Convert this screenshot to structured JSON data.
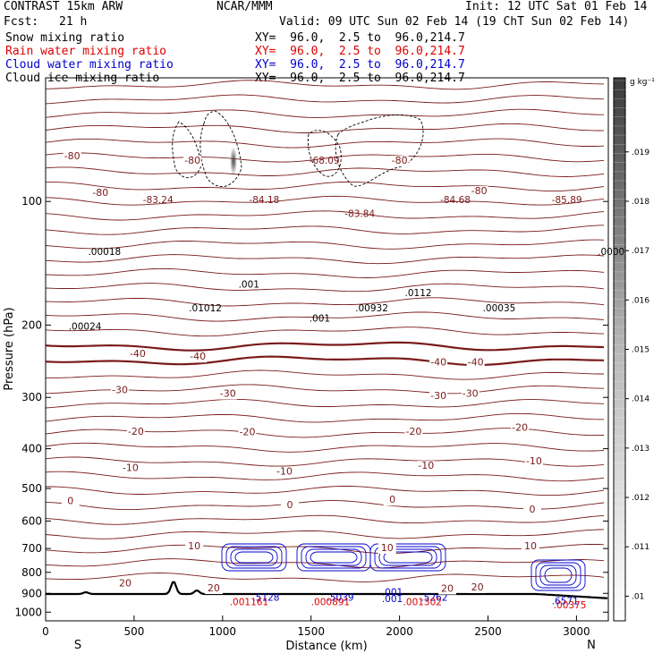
{
  "header": {
    "model": "CONTRAST 15km ARW",
    "org": "NCAR/MMM",
    "init": "Init: 12 UTC Sat 01 Feb 14",
    "fcst_label": "Fcst:",
    "fcst_value": "21 h",
    "valid": "Valid: 09 UTC Sun 02 Feb 14 (19 ChT Sun 02 Feb 14)",
    "fields": [
      {
        "name": "Snow mixing ratio",
        "xy": "XY=  96.0,  2.5 to  96.0,214.7",
        "color": "#000000"
      },
      {
        "name": "Rain water mixing ratio",
        "xy": "XY=  96.0,  2.5 to  96.0,214.7",
        "color": "#e00000"
      },
      {
        "name": "Cloud water mixing ratio",
        "xy": "XY=  96.0,  2.5 to  96.0,214.7",
        "color": "#0000cc"
      },
      {
        "name": "Cloud ice mixing ratio",
        "xy": "XY=  96.0,  2.5 to  96.0,214.7",
        "color": "#000000"
      }
    ]
  },
  "chart_data": {
    "type": "contour",
    "xlabel": "Distance (km)",
    "ylabel": "Pressure (hPa)",
    "xlim": [
      0,
      3180
    ],
    "ylim": [
      50,
      1050
    ],
    "y_scale": "log",
    "x_ticks": [
      0,
      500,
      1000,
      1500,
      2000,
      2500,
      3000
    ],
    "y_ticks": [
      100,
      200,
      300,
      400,
      500,
      600,
      700,
      800,
      900,
      1000
    ],
    "end_labels": {
      "left": "S",
      "right": "N"
    },
    "colorbar": {
      "units": "g kg⁻¹",
      "ticks": [
        0.01,
        0.011,
        0.012,
        0.013,
        0.014,
        0.015,
        0.016,
        0.017,
        0.018,
        0.019
      ],
      "tick_labels": [
        ".01",
        ".011",
        ".012",
        ".013",
        ".014",
        ".015",
        ".016",
        ".017",
        ".018",
        ".019"
      ],
      "range": [
        0.0095,
        0.0205
      ]
    },
    "temperature_contour_labels": [
      {
        "text": "-80",
        "x": 150,
        "p": 79
      },
      {
        "text": "-80",
        "x": 830,
        "p": 81
      },
      {
        "text": "-80",
        "x": 2000,
        "p": 81
      },
      {
        "text": "-80",
        "x": 2450,
        "p": 96
      },
      {
        "text": "-80",
        "x": 310,
        "p": 97
      },
      {
        "text": "-40",
        "x": 520,
        "p": 239
      },
      {
        "text": "-40",
        "x": 860,
        "p": 243
      },
      {
        "text": "-40",
        "x": 2220,
        "p": 251
      },
      {
        "text": "-40",
        "x": 2430,
        "p": 251
      },
      {
        "text": "-30",
        "x": 420,
        "p": 293
      },
      {
        "text": "-30",
        "x": 1030,
        "p": 299
      },
      {
        "text": "-30",
        "x": 2220,
        "p": 303
      },
      {
        "text": "-30",
        "x": 2400,
        "p": 299
      },
      {
        "text": "-20",
        "x": 510,
        "p": 370
      },
      {
        "text": "-20",
        "x": 1140,
        "p": 371
      },
      {
        "text": "-20",
        "x": 2080,
        "p": 370
      },
      {
        "text": "-20",
        "x": 2680,
        "p": 362
      },
      {
        "text": "-10",
        "x": 480,
        "p": 453
      },
      {
        "text": "-10",
        "x": 1350,
        "p": 463
      },
      {
        "text": "-10",
        "x": 2150,
        "p": 448
      },
      {
        "text": "-10",
        "x": 2760,
        "p": 437
      },
      {
        "text": "0",
        "x": 140,
        "p": 546
      },
      {
        "text": "0",
        "x": 1380,
        "p": 558
      },
      {
        "text": "0",
        "x": 1960,
        "p": 542
      },
      {
        "text": "0",
        "x": 2750,
        "p": 572
      },
      {
        "text": "10",
        "x": 840,
        "p": 703
      },
      {
        "text": "10",
        "x": 1930,
        "p": 710
      },
      {
        "text": "10",
        "x": 2740,
        "p": 703
      },
      {
        "text": "20",
        "x": 450,
        "p": 866
      },
      {
        "text": "20",
        "x": 950,
        "p": 890
      },
      {
        "text": "20",
        "x": 2270,
        "p": 892
      },
      {
        "text": "20",
        "x": 2440,
        "p": 885
      }
    ],
    "extrema_labels": [
      {
        "text": "-83.24",
        "x": 550,
        "p": 101,
        "color": "#7a1a1a"
      },
      {
        "text": "-84.18",
        "x": 1150,
        "p": 101,
        "color": "#7a1a1a"
      },
      {
        "text": "-68.09",
        "x": 1490,
        "p": 81,
        "color": "#7a1a1a"
      },
      {
        "text": "-83.84",
        "x": 1690,
        "p": 109,
        "color": "#7a1a1a"
      },
      {
        "text": "-84.68",
        "x": 2230,
        "p": 101,
        "color": "#7a1a1a"
      },
      {
        "text": "-85.89",
        "x": 2860,
        "p": 101,
        "color": "#7a1a1a"
      },
      {
        "text": ".00018",
        "x": 240,
        "p": 135,
        "color": "#000000"
      },
      {
        "text": ".00024",
        "x": 130,
        "p": 205,
        "color": "#000000"
      },
      {
        "text": ".01012",
        "x": 810,
        "p": 185,
        "color": "#000000"
      },
      {
        "text": ".001",
        "x": 1090,
        "p": 162,
        "color": "#000000"
      },
      {
        "text": ".001",
        "x": 1490,
        "p": 196,
        "color": "#000000"
      },
      {
        "text": ".00932",
        "x": 1750,
        "p": 185,
        "color": "#000000"
      },
      {
        "text": ".0112",
        "x": 2030,
        "p": 170,
        "color": "#000000"
      },
      {
        "text": ".00035",
        "x": 2470,
        "p": 185,
        "color": "#000000"
      },
      {
        "text": ".0000",
        "x": 3120,
        "p": 135,
        "color": "#000000"
      },
      {
        "text": ".5128",
        "x": 1170,
        "p": 939,
        "color": "#0000cc"
      },
      {
        "text": ".001161",
        "x": 1040,
        "p": 962,
        "color": "#e00000"
      },
      {
        "text": ".5039",
        "x": 1590,
        "p": 939,
        "color": "#0000cc"
      },
      {
        "text": ".000891",
        "x": 1500,
        "p": 962,
        "color": "#e00000"
      },
      {
        "text": ".001",
        "x": 1900,
        "p": 911,
        "color": "#0000cc"
      },
      {
        "text": ".001",
        "x": 1900,
        "p": 946,
        "color": "#0000cc"
      },
      {
        "text": ".5262",
        "x": 2120,
        "p": 939,
        "color": "#0000cc"
      },
      {
        "text": ".001302",
        "x": 2020,
        "p": 962,
        "color": "#e00000"
      },
      {
        "text": ".6571",
        "x": 2860,
        "p": 958,
        "color": "#0000cc"
      },
      {
        "text": ".00375",
        "x": 2870,
        "p": 980,
        "color": "#e00000"
      }
    ]
  }
}
